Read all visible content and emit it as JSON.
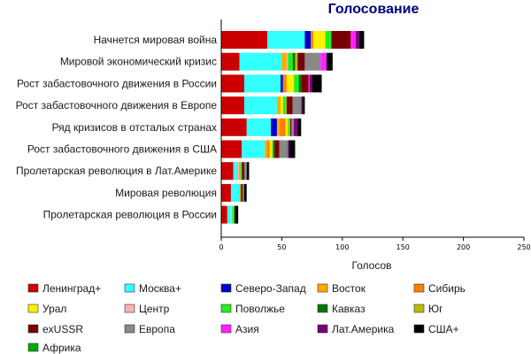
{
  "chart_data": {
    "type": "bar",
    "orientation": "horizontal",
    "stacked": true,
    "title": "Голосование",
    "xlabel": "Голосов",
    "xlim": [
      0,
      250
    ],
    "x_ticks": [
      "0",
      "50",
      "100",
      "150",
      "200",
      "250"
    ],
    "grid": false,
    "legend_placement": "bottom",
    "categories": [
      "Начнется мировая война",
      "Мировой экономический кризис",
      "Рост забастовочного движения в России",
      "Рост забастовочного движения в Европе",
      "Ряд кризисов в отсталых странах",
      "Рост забастовочного движения в США",
      "Пролетарская революция в Лат.Америке",
      "Мировая революция",
      "Пролетарская революция в России"
    ],
    "series": [
      {
        "name": "Ленинград+",
        "color": "#cc0000",
        "values": [
          38,
          15,
          19,
          19,
          21,
          17,
          10,
          8,
          5
        ]
      },
      {
        "name": "Москва+",
        "color": "#33ffff",
        "values": [
          31,
          35,
          30,
          27,
          20,
          19,
          3,
          7,
          3
        ]
      },
      {
        "name": "Северо-Запад",
        "color": "#0000cc",
        "values": [
          5,
          0,
          2,
          0,
          5,
          0,
          0,
          0,
          0
        ]
      },
      {
        "name": "Восток",
        "color": "#ffaa00",
        "values": [
          0,
          4,
          0,
          3,
          2,
          2,
          1,
          1,
          0
        ]
      },
      {
        "name": "Сибирь",
        "color": "#ff8000",
        "values": [
          2,
          0,
          3,
          0,
          5,
          2,
          0,
          0,
          0
        ]
      },
      {
        "name": "Урал",
        "color": "#ffee00",
        "values": [
          10,
          0,
          6,
          2,
          2,
          2,
          0,
          0,
          0
        ]
      },
      {
        "name": "Центр",
        "color": "#ffb0b0",
        "values": [
          0,
          1,
          0,
          0,
          0,
          0,
          1,
          0,
          1
        ]
      },
      {
        "name": "Поволжье",
        "color": "#22ee22",
        "values": [
          5,
          4,
          4,
          2,
          1,
          1,
          1,
          0,
          2
        ]
      },
      {
        "name": "Кавказ",
        "color": "#007700",
        "values": [
          0,
          2,
          2,
          0,
          0,
          1,
          0,
          1,
          0
        ]
      },
      {
        "name": "Юг",
        "color": "#bbbb00",
        "values": [
          0,
          2,
          0,
          1,
          1,
          0,
          1,
          0,
          0
        ]
      },
      {
        "name": "exUSSR",
        "color": "#770000",
        "values": [
          16,
          6,
          6,
          5,
          1,
          4,
          2,
          1,
          0
        ]
      },
      {
        "name": "Европа",
        "color": "#888888",
        "values": [
          0,
          13,
          0,
          7,
          2,
          7,
          2,
          1,
          0
        ]
      },
      {
        "name": "Азия",
        "color": "#ff22ff",
        "values": [
          4,
          5,
          1,
          0,
          0,
          0,
          0,
          0,
          0
        ]
      },
      {
        "name": "Лат.Америка",
        "color": "#770077",
        "values": [
          3,
          0,
          2,
          1,
          3,
          1,
          0,
          0,
          0
        ]
      },
      {
        "name": "США+",
        "color": "#000000",
        "values": [
          4,
          5,
          8,
          2,
          3,
          5,
          2,
          2,
          3
        ]
      },
      {
        "name": "Африка",
        "color": "#00aa00",
        "values": [
          0,
          0,
          0,
          0,
          0,
          0,
          0,
          0,
          0
        ]
      }
    ]
  }
}
